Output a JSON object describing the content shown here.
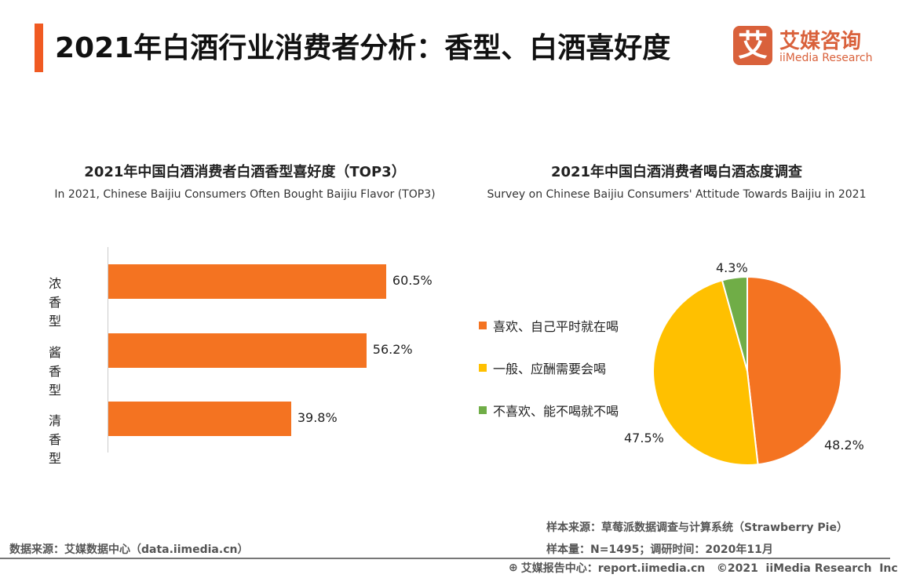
{
  "header": {
    "title": "2021年白酒行业消费者分析：香型、白酒喜好度",
    "logo_mark": "艾",
    "logo_cn": "艾媒咨询",
    "logo_en": "iiMedia Research",
    "accent": "#F05A22"
  },
  "chart_data": [
    {
      "type": "bar",
      "orientation": "horizontal",
      "title": "2021年中国白酒消费者白酒香型喜好度（TOP3）",
      "subtitle": "In 2021, Chinese Baijiu Consumers Often Bought Baijiu Flavor (TOP3)",
      "categories": [
        "浓香型",
        "酱香型",
        "清香型"
      ],
      "values": [
        60.5,
        56.2,
        39.8
      ],
      "labels": [
        "60.5%",
        "56.2%",
        "39.8%"
      ],
      "unit": "%",
      "xlim": [
        0,
        100
      ],
      "color": "#F47321"
    },
    {
      "type": "pie",
      "title": "2021年中国白酒消费者喝白酒态度调查",
      "subtitle": "Survey on Chinese Baijiu Consumers' Attitude Towards Baijiu in 2021",
      "legend_position": "left",
      "slices": [
        {
          "label": "喜欢、自己平时就在喝",
          "value": 48.2,
          "text": "48.2%",
          "color": "#F47321"
        },
        {
          "label": "一般、应酬需要会喝",
          "value": 47.5,
          "text": "47.5%",
          "color": "#FFC000"
        },
        {
          "label": "不喜欢、能不喝就不喝",
          "value": 4.3,
          "text": "4.3%",
          "color": "#70AD47"
        }
      ]
    }
  ],
  "footer": {
    "source": "数据来源：艾媒数据中心（data.iimedia.cn）",
    "sample_source": "样本来源：草莓派数据调查与计算系统（Strawberry Pie）",
    "sample_size": "样本量：N=1495；调研时间：2020年11月",
    "report": "艾媒报告中心：report.iimedia.cn   ©2021  iiMedia Research  Inc"
  }
}
